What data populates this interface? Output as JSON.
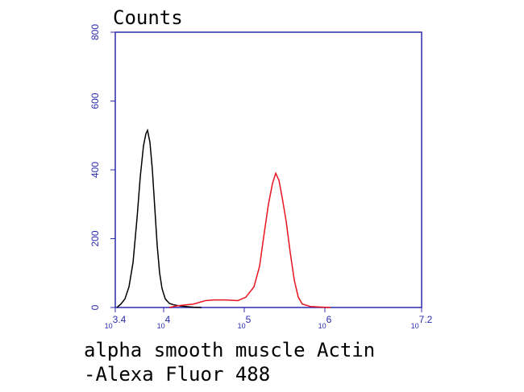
{
  "chart_data": {
    "type": "line",
    "title": "Counts",
    "xlabel": [
      "alpha smooth muscle Actin",
      "-Alexa Fluor 488"
    ],
    "xscale": "log",
    "xlim": [
      2511.886,
      15848932
    ],
    "xticks": [
      {
        "value": 2511.886,
        "label": "10^3.4"
      },
      {
        "value": 10000,
        "label": "10^4"
      },
      {
        "value": 100000,
        "label": "10^5"
      },
      {
        "value": 1000000,
        "label": "10^6"
      },
      {
        "value": 15848932,
        "label": "10^7.2"
      }
    ],
    "ylim": [
      0,
      800
    ],
    "yticks": [
      0,
      200,
      400,
      600,
      800
    ],
    "axis_color": "#2b2bb0",
    "series": [
      {
        "color": "#000000",
        "x": [
          2630,
          2951,
          3311,
          3715,
          4169,
          4677,
          5129,
          5623,
          6026,
          6310,
          6761,
          7244,
          7762,
          8318,
          8913,
          9550,
          10471,
          11749,
          13183,
          15488,
          18621,
          23442,
          29512
        ],
        "values": [
          0,
          10,
          25,
          60,
          130,
          260,
          380,
          470,
          505,
          515,
          480,
          400,
          290,
          180,
          100,
          55,
          25,
          12,
          8,
          5,
          3,
          1,
          0
        ]
      },
      {
        "color": "#e8141e",
        "x": [
          11749,
          14791,
          23442,
          33113,
          41687,
          58884,
          83176,
          104713,
          131826,
          154882,
          177828,
          199526,
          223872,
          245471,
          269153,
          295121,
          331131,
          371535,
          416869,
          467735,
          524807,
          660693,
          933254,
          1174898
        ],
        "values": [
          0,
          5,
          10,
          20,
          22,
          22,
          20,
          30,
          60,
          120,
          220,
          300,
          360,
          390,
          370,
          320,
          250,
          160,
          80,
          30,
          10,
          3,
          1,
          0
        ]
      }
    ]
  }
}
